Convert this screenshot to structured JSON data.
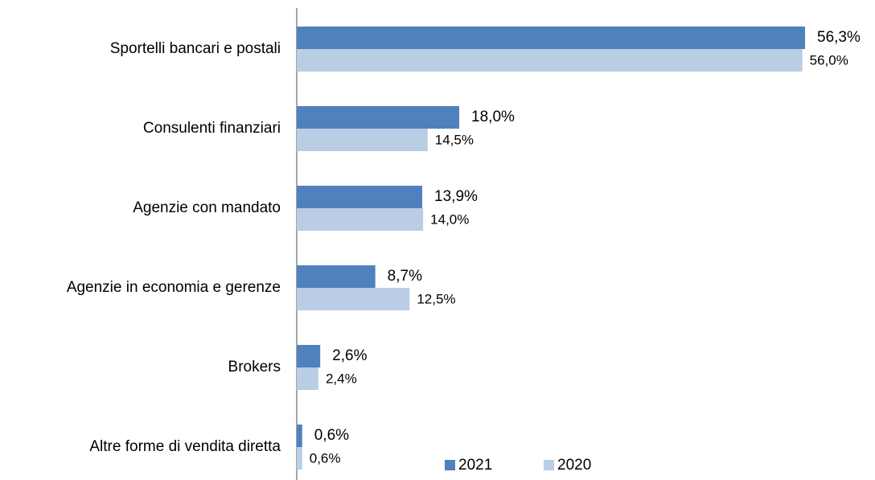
{
  "chart_data": {
    "type": "bar",
    "orientation": "horizontal",
    "categories": [
      "Sportelli bancari e postali",
      "Consulenti finanziari",
      "Agenzie con mandato",
      "Agenzie in economia e gerenze",
      "Brokers",
      "Altre forme di vendita diretta"
    ],
    "series": [
      {
        "name": "2021",
        "color": "#4f81bd",
        "values": [
          56.3,
          18.0,
          13.9,
          8.7,
          2.6,
          0.6
        ],
        "value_labels": [
          "56,3%",
          "18,0%",
          "13,9%",
          "8,7%",
          "2,6%",
          "0,6%"
        ]
      },
      {
        "name": "2020",
        "color": "#b9cde5",
        "values": [
          56.0,
          14.5,
          14.0,
          12.5,
          2.4,
          0.6
        ],
        "value_labels": [
          "56,0%",
          "14,5%",
          "14,0%",
          "12,5%",
          "2,4%",
          "0,6%"
        ]
      }
    ],
    "legend": "bottom"
  }
}
